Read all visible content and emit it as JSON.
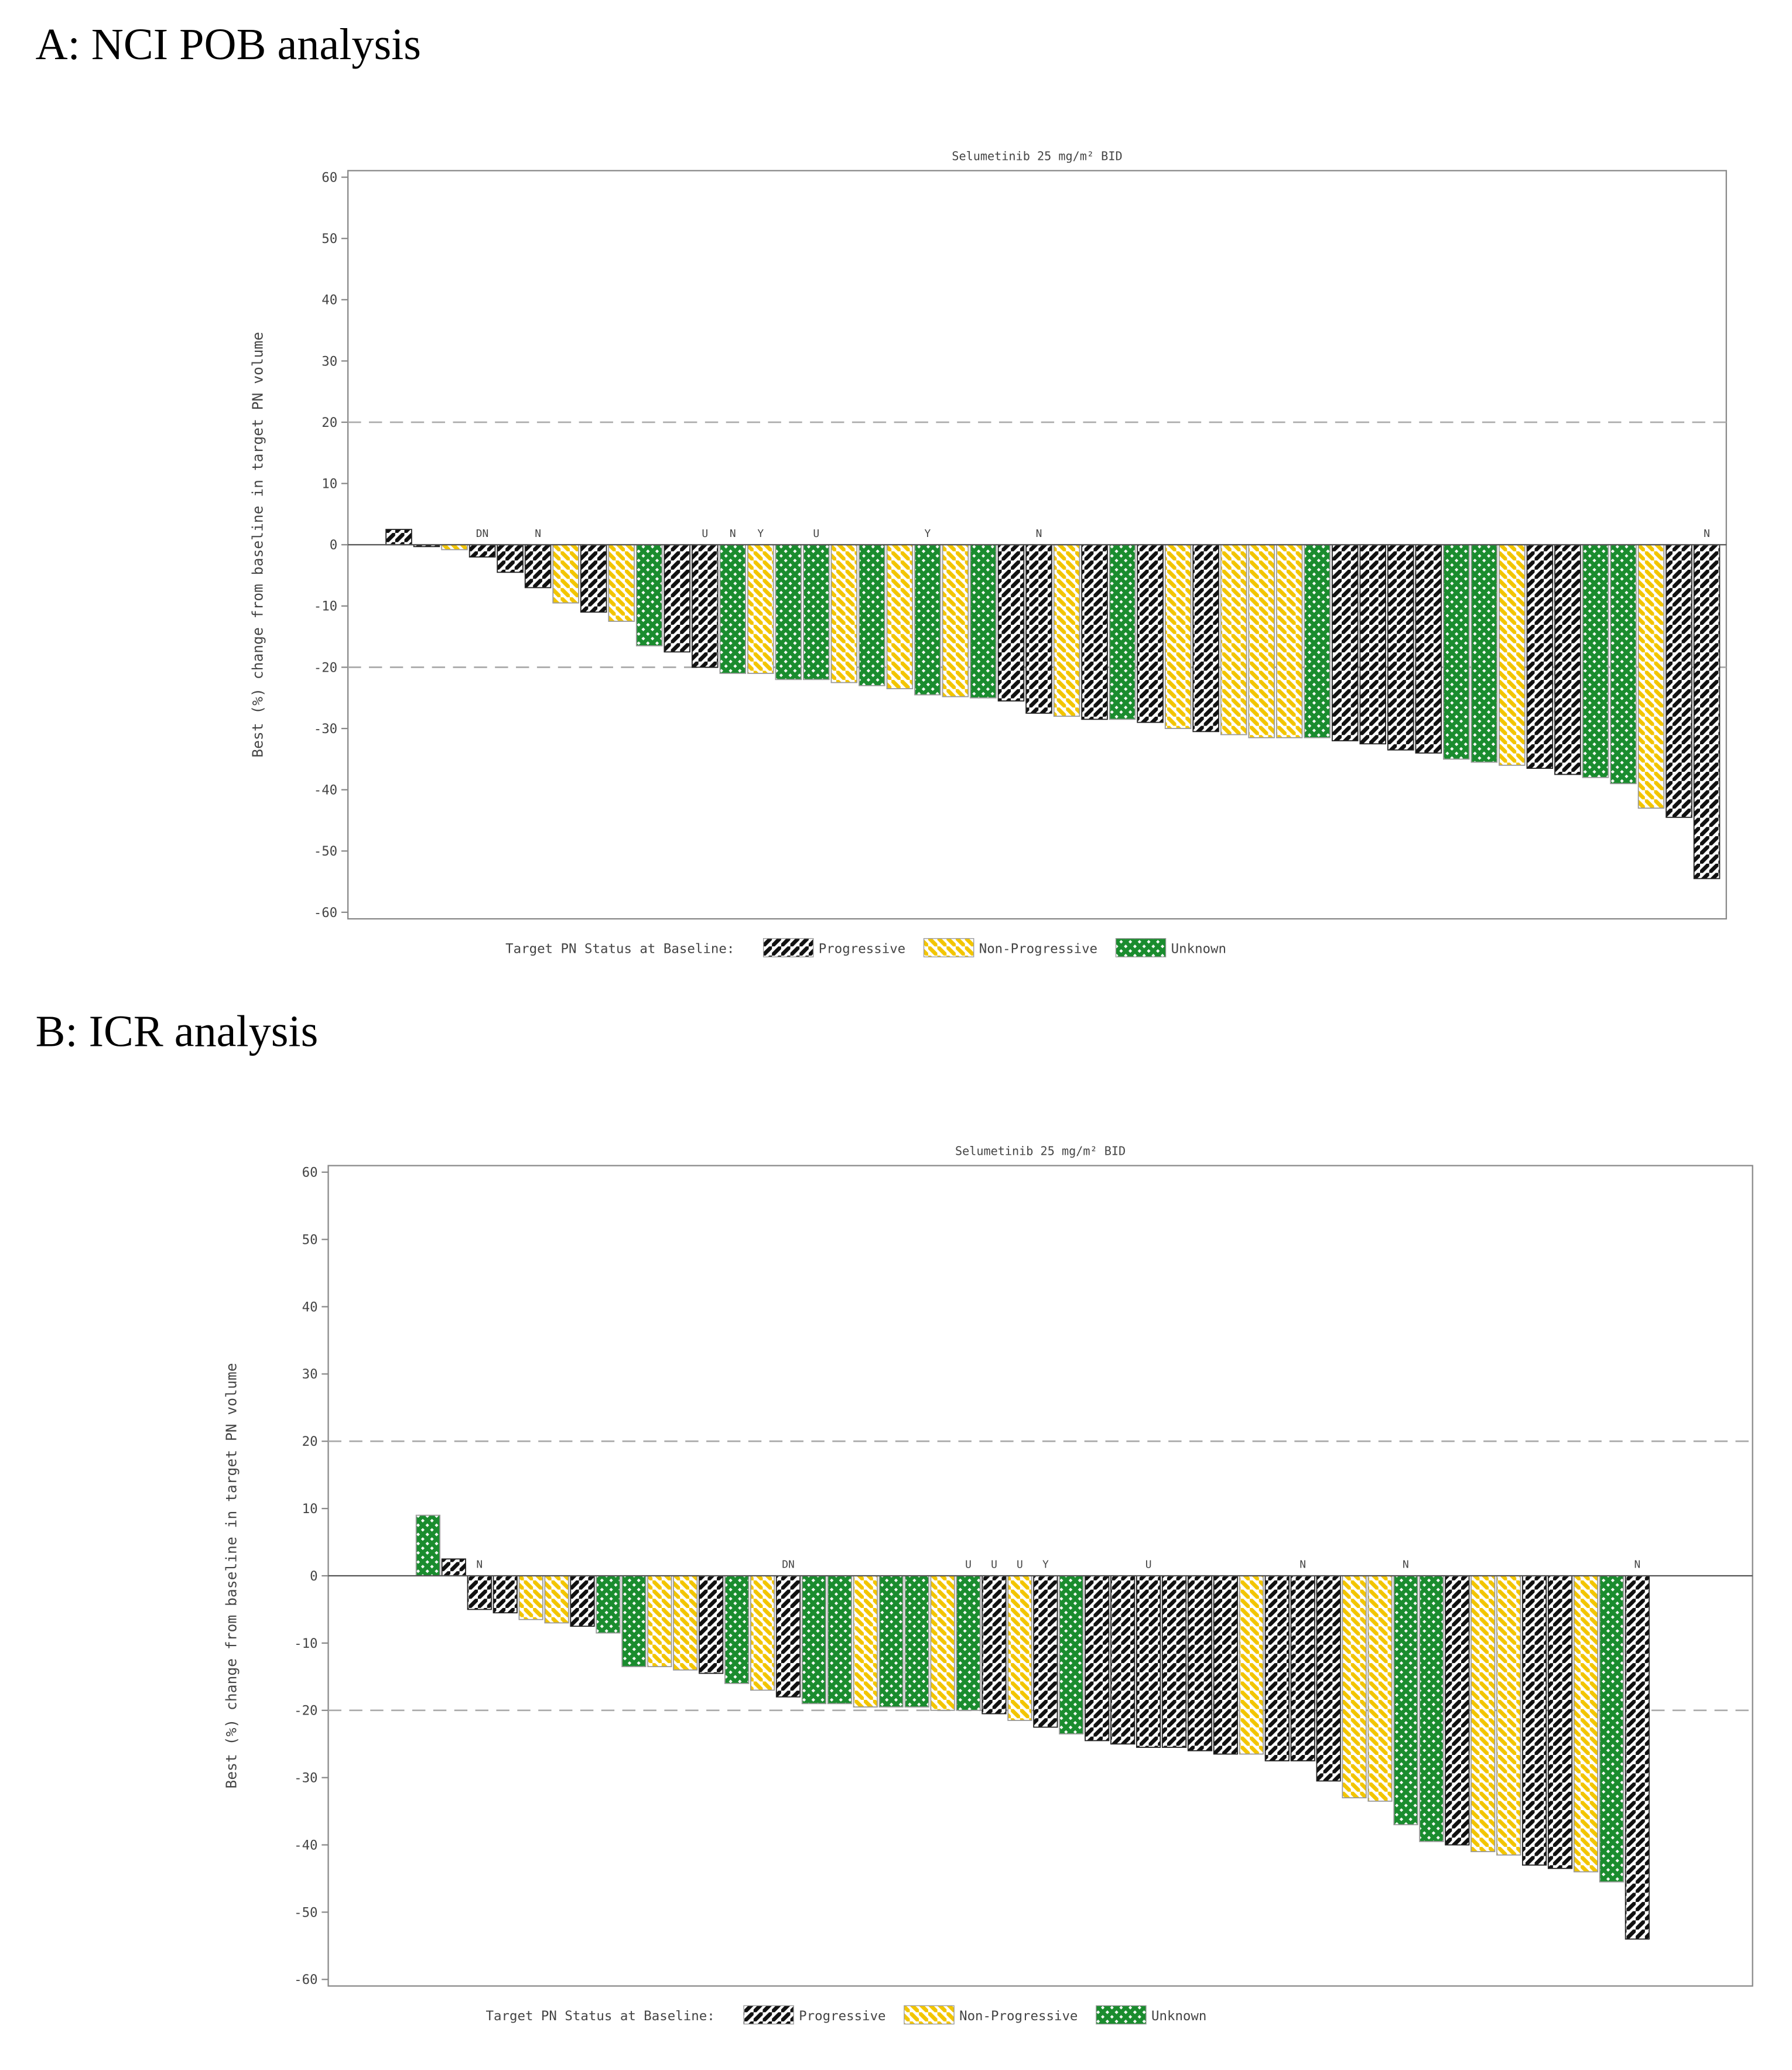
{
  "chart_data": [
    {
      "type": "bar",
      "panel_title": "A: NCI POB analysis",
      "title": "Selumetinib 25 mg/m² BID",
      "y_label": "Best (%) change from baseline in target PN volume",
      "legend_title": "Target PN Status at Baseline:",
      "ylim": [
        -60,
        60
      ],
      "yticks": [
        60,
        50,
        40,
        30,
        20,
        10,
        0,
        -10,
        -20,
        -30,
        -40,
        -50,
        -60
      ],
      "reference_lines": [
        20,
        -20
      ],
      "series": [
        {
          "name": "Progressive",
          "color": "#111111",
          "hatch": "/",
          "values": [
            2.5,
            -0.3,
            null,
            -2,
            -4.5,
            -7,
            null,
            -11,
            null,
            null,
            -17.5,
            -20,
            null,
            null,
            null,
            null,
            null,
            null,
            null,
            null,
            null,
            null,
            -25.5,
            -27.5,
            null,
            -28.5,
            null,
            -29,
            null,
            -30.5,
            null,
            null,
            null,
            null,
            -32,
            -32.5,
            -33.5,
            -34,
            null,
            null,
            null,
            -36.5,
            -37.5,
            null,
            null,
            null,
            -44.5,
            -54.5
          ]
        },
        {
          "name": "Non-Progressive",
          "color": "#f2c500",
          "hatch": "\\",
          "values": [
            null,
            null,
            -0.8,
            null,
            null,
            null,
            -9.5,
            null,
            -12.5,
            null,
            null,
            null,
            null,
            -21,
            null,
            null,
            -22.5,
            null,
            -23.5,
            null,
            -24.8,
            null,
            null,
            null,
            -28,
            null,
            null,
            null,
            -30,
            null,
            -31,
            -31.5,
            -31.5,
            null,
            null,
            null,
            null,
            null,
            null,
            null,
            -36,
            null,
            null,
            null,
            null,
            -43,
            null,
            null
          ]
        },
        {
          "name": "Unknown",
          "color": "#1a8c2e",
          "hatch": "x",
          "values": [
            null,
            null,
            null,
            null,
            null,
            null,
            null,
            null,
            null,
            -16.5,
            null,
            null,
            -21,
            null,
            -22,
            -22,
            null,
            -23,
            null,
            -24.5,
            null,
            -25,
            null,
            null,
            null,
            null,
            -28.5,
            null,
            null,
            null,
            null,
            null,
            null,
            -31.5,
            null,
            null,
            null,
            null,
            -35,
            -35.5,
            null,
            null,
            null,
            -38,
            -39,
            null,
            null,
            null
          ]
        }
      ],
      "annotations": [
        null,
        null,
        null,
        "DN",
        null,
        "N",
        null,
        null,
        null,
        null,
        null,
        "U",
        "N",
        "Y",
        null,
        "U",
        null,
        null,
        null,
        "Y",
        null,
        null,
        null,
        "N",
        null,
        null,
        null,
        null,
        null,
        null,
        null,
        null,
        null,
        null,
        null,
        null,
        null,
        null,
        null,
        null,
        null,
        null,
        null,
        null,
        null,
        null,
        null,
        "N"
      ]
    },
    {
      "type": "bar",
      "panel_title": "B: ICR analysis",
      "title": "Selumetinib 25 mg/m² BID",
      "y_label": "Best (%) change from baseline in target PN volume",
      "legend_title": "Target PN Status at Baseline:",
      "ylim": [
        -60,
        60
      ],
      "yticks": [
        60,
        50,
        40,
        30,
        20,
        10,
        0,
        -10,
        -20,
        -30,
        -40,
        -50,
        -60
      ],
      "reference_lines": [
        20,
        -20
      ],
      "series": [
        {
          "name": "Progressive",
          "color": "#111111",
          "hatch": "/",
          "values": [
            null,
            2.5,
            -5,
            -5.5,
            null,
            null,
            -7.5,
            null,
            null,
            null,
            null,
            -14.5,
            null,
            null,
            -18,
            null,
            null,
            null,
            null,
            null,
            null,
            null,
            -20.5,
            null,
            -22.5,
            null,
            -24.5,
            -25,
            -25.5,
            -25.5,
            -26,
            -26.5,
            null,
            -27.5,
            -27.5,
            -30.5,
            null,
            null,
            null,
            null,
            -40,
            null,
            null,
            -43,
            -43.5,
            null,
            null,
            -54
          ]
        },
        {
          "name": "Non-Progressive",
          "color": "#f2c500",
          "hatch": "\\",
          "values": [
            null,
            null,
            null,
            null,
            -6.5,
            -7,
            null,
            null,
            null,
            -13.5,
            -14,
            null,
            null,
            -17,
            null,
            null,
            null,
            -19.5,
            null,
            null,
            -20,
            null,
            null,
            -21.5,
            null,
            null,
            null,
            null,
            null,
            null,
            null,
            null,
            -26.5,
            null,
            null,
            null,
            -33,
            -33.5,
            null,
            null,
            null,
            -41,
            -41.5,
            null,
            null,
            -44,
            null,
            null
          ]
        },
        {
          "name": "Unknown",
          "color": "#1a8c2e",
          "hatch": "x",
          "values": [
            9,
            null,
            null,
            null,
            null,
            null,
            null,
            -8.5,
            -13.5,
            null,
            null,
            null,
            -16,
            null,
            null,
            -19,
            -19,
            null,
            -19.5,
            -19.5,
            null,
            -20,
            null,
            null,
            null,
            -23.5,
            null,
            null,
            null,
            null,
            null,
            null,
            null,
            null,
            null,
            null,
            null,
            null,
            -37,
            -39.5,
            null,
            null,
            null,
            null,
            null,
            null,
            -45.5,
            null
          ]
        }
      ],
      "annotations": [
        null,
        null,
        "N",
        null,
        null,
        null,
        null,
        null,
        null,
        null,
        null,
        null,
        null,
        null,
        "DN",
        null,
        null,
        null,
        null,
        null,
        null,
        "U",
        "U",
        "U",
        "Y",
        null,
        null,
        null,
        "U",
        null,
        null,
        null,
        null,
        null,
        "N",
        null,
        null,
        null,
        "N",
        null,
        null,
        null,
        null,
        null,
        null,
        null,
        null,
        "N"
      ]
    }
  ]
}
